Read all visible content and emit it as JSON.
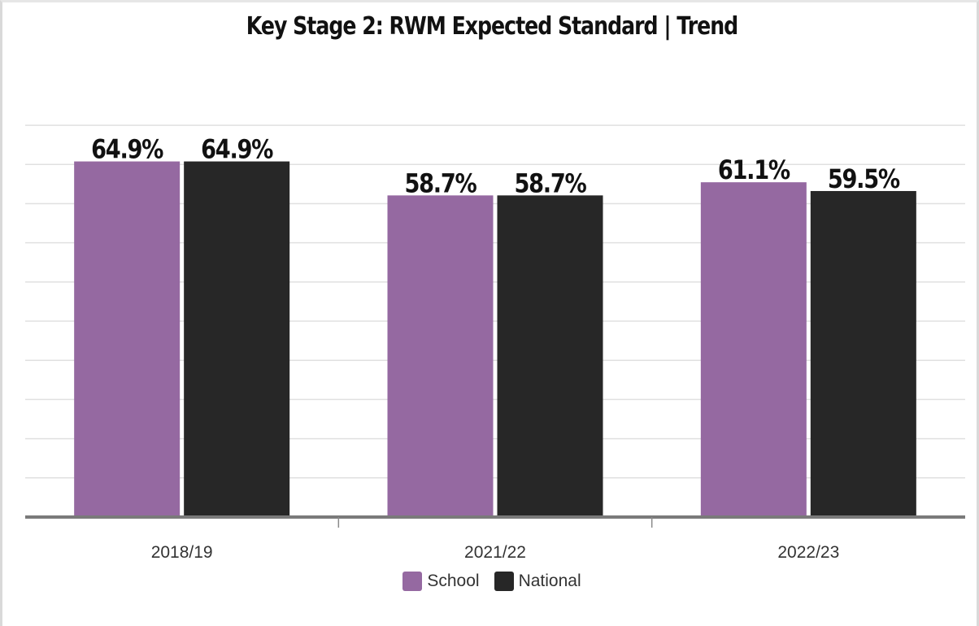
{
  "chart_data": {
    "type": "bar",
    "title": "Key Stage 2: RWM Expected Standard | Trend",
    "categories": [
      "2018/19",
      "2021/22",
      "2022/23"
    ],
    "series": [
      {
        "name": "School",
        "values": [
          64.9,
          58.7,
          61.1
        ],
        "labels": [
          "64.9%",
          "58.7%",
          "61.1%"
        ],
        "color": "#9569a1"
      },
      {
        "name": "National",
        "values": [
          64.9,
          58.7,
          59.5
        ],
        "labels": [
          "64.9%",
          "58.7%",
          "59.5%"
        ],
        "color": "#272727"
      }
    ],
    "ylim": [
      0,
      90
    ],
    "grid": true,
    "legend_position": "bottom-center"
  }
}
